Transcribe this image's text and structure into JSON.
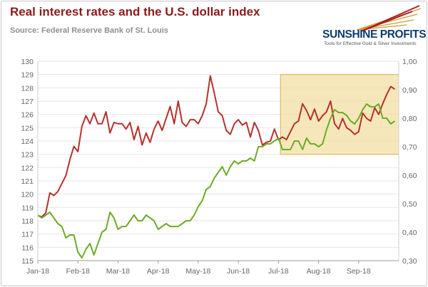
{
  "header": {
    "title": "Real interest rates and the U.S. dollar index",
    "source": "Source: Federal Reserve Bank of St. Louis"
  },
  "logo": {
    "name": "SUNSHINE PROFITS",
    "tagline": "Tools for Effective Gold & Silver Investments"
  },
  "colors": {
    "dollar_index": "#b5312e",
    "real_rates": "#6eac27",
    "highlight_fill": "#f3dfa4",
    "highlight_stroke": "#d8b04e",
    "logo_text": "#0d3c6e"
  },
  "chart_data": {
    "type": "line",
    "title": "Real interest rates and the U.S. dollar index",
    "x_range": [
      0,
      9
    ],
    "x_ticks": [
      {
        "label": "Jan-18",
        "value": 0
      },
      {
        "label": "Feb-18",
        "value": 1
      },
      {
        "label": "Mar-18",
        "value": 2
      },
      {
        "label": "Apr-18",
        "value": 3
      },
      {
        "label": "May-18",
        "value": 4
      },
      {
        "label": "Jun-18",
        "value": 5
      },
      {
        "label": "Jul-18",
        "value": 6
      },
      {
        "label": "Aug-18",
        "value": 7
      },
      {
        "label": "Sep-18",
        "value": 8
      }
    ],
    "y_left": {
      "min": 115,
      "max": 130,
      "ticks": [
        "115",
        "116",
        "117",
        "118",
        "119",
        "120",
        "121",
        "122",
        "123",
        "124",
        "125",
        "126",
        "127",
        "128",
        "129",
        "130"
      ]
    },
    "y_right": {
      "min": 0.3,
      "max": 1.0,
      "ticks": [
        "0,30",
        "0,40",
        "0,50",
        "0,60",
        "0,70",
        "0,80",
        "0,90",
        "1,00"
      ]
    },
    "series": [
      {
        "name": "U.S. dollar index",
        "axis": "left",
        "x": [
          0.0,
          0.1,
          0.2,
          0.3,
          0.4,
          0.5,
          0.6,
          0.7,
          0.8,
          0.9,
          1.0,
          1.1,
          1.2,
          1.3,
          1.4,
          1.5,
          1.6,
          1.7,
          1.8,
          1.9,
          2.0,
          2.1,
          2.2,
          2.3,
          2.4,
          2.5,
          2.6,
          2.7,
          2.8,
          2.9,
          3.0,
          3.1,
          3.2,
          3.3,
          3.4,
          3.5,
          3.6,
          3.7,
          3.8,
          3.9,
          4.0,
          4.1,
          4.2,
          4.3,
          4.4,
          4.5,
          4.6,
          4.7,
          4.8,
          4.9,
          5.0,
          5.1,
          5.2,
          5.3,
          5.4,
          5.5,
          5.6,
          5.7,
          5.8,
          5.9,
          6.0,
          6.1,
          6.2,
          6.3,
          6.4,
          6.5,
          6.6,
          6.7,
          6.8,
          6.9,
          7.0,
          7.1,
          7.2,
          7.3,
          7.4,
          7.5,
          7.6,
          7.7,
          7.8,
          7.9,
          8.0,
          8.1,
          8.2,
          8.3,
          8.4,
          8.5,
          8.6,
          8.7,
          8.8,
          8.9
        ],
        "values": [
          118.4,
          118.3,
          118.6,
          120.1,
          119.9,
          120.2,
          120.8,
          121.4,
          122.6,
          123.6,
          123.2,
          125.1,
          125.9,
          125.3,
          126.1,
          125.3,
          125.3,
          126.2,
          124.6,
          125.4,
          125.3,
          125.3,
          124.9,
          125.4,
          124.1,
          125.1,
          123.7,
          124.6,
          123.9,
          124.9,
          125.5,
          124.8,
          125.7,
          126.6,
          125.3,
          127.0,
          125.4,
          125.1,
          125.6,
          125.6,
          125.3,
          125.9,
          126.8,
          128.9,
          127.6,
          126.2,
          125.9,
          124.8,
          124.5,
          125.3,
          125.6,
          125.2,
          125.4,
          124.3,
          125.4,
          124.8,
          123.7,
          123.9,
          124.0,
          124.9,
          124.1,
          124.3,
          124.1,
          124.7,
          125.3,
          125.5,
          126.8,
          126.3,
          125.6,
          126.4,
          125.5,
          125.9,
          126.2,
          127.0,
          125.3,
          124.9,
          125.7,
          125.0,
          124.8,
          124.5,
          124.7,
          126.1,
          125.7,
          125.5,
          126.5,
          126.0,
          126.8,
          127.5,
          128.1,
          127.9
        ]
      },
      {
        "name": "Real interest rate",
        "axis": "right",
        "x": [
          0.0,
          0.1,
          0.2,
          0.3,
          0.4,
          0.5,
          0.6,
          0.7,
          0.8,
          0.9,
          1.0,
          1.1,
          1.2,
          1.3,
          1.4,
          1.5,
          1.6,
          1.7,
          1.8,
          1.9,
          2.0,
          2.1,
          2.2,
          2.3,
          2.4,
          2.5,
          2.6,
          2.7,
          2.8,
          2.9,
          3.0,
          3.1,
          3.2,
          3.3,
          3.4,
          3.5,
          3.6,
          3.7,
          3.8,
          3.9,
          4.0,
          4.1,
          4.2,
          4.3,
          4.4,
          4.5,
          4.6,
          4.7,
          4.8,
          4.9,
          5.0,
          5.1,
          5.2,
          5.3,
          5.4,
          5.5,
          5.6,
          5.7,
          5.8,
          5.9,
          6.0,
          6.1,
          6.2,
          6.3,
          6.4,
          6.5,
          6.6,
          6.7,
          6.8,
          6.9,
          7.0,
          7.1,
          7.2,
          7.3,
          7.4,
          7.5,
          7.6,
          7.7,
          7.8,
          7.9,
          8.0,
          8.1,
          8.2,
          8.3,
          8.4,
          8.5,
          8.6,
          8.7,
          8.8,
          8.9
        ],
        "values": [
          0.46,
          0.45,
          0.46,
          0.47,
          0.45,
          0.43,
          0.42,
          0.38,
          0.39,
          0.39,
          0.33,
          0.31,
          0.34,
          0.36,
          0.32,
          0.36,
          0.4,
          0.41,
          0.47,
          0.45,
          0.41,
          0.42,
          0.42,
          0.44,
          0.46,
          0.44,
          0.44,
          0.46,
          0.45,
          0.44,
          0.41,
          0.42,
          0.43,
          0.42,
          0.42,
          0.42,
          0.43,
          0.44,
          0.44,
          0.46,
          0.49,
          0.51,
          0.55,
          0.56,
          0.59,
          0.61,
          0.63,
          0.6,
          0.63,
          0.65,
          0.64,
          0.65,
          0.65,
          0.66,
          0.65,
          0.7,
          0.7,
          0.71,
          0.71,
          0.72,
          0.73,
          0.69,
          0.69,
          0.69,
          0.72,
          0.72,
          0.69,
          0.73,
          0.71,
          0.71,
          0.7,
          0.71,
          0.76,
          0.8,
          0.83,
          0.82,
          0.82,
          0.81,
          0.79,
          0.78,
          0.8,
          0.83,
          0.85,
          0.84,
          0.84,
          0.85,
          0.8,
          0.8,
          0.78,
          0.79
        ]
      }
    ],
    "highlight_region": {
      "x_range": [
        6.05,
        9.0
      ],
      "y_range_left": [
        123.0,
        129.0
      ]
    },
    "grid": true,
    "legend": "none"
  }
}
